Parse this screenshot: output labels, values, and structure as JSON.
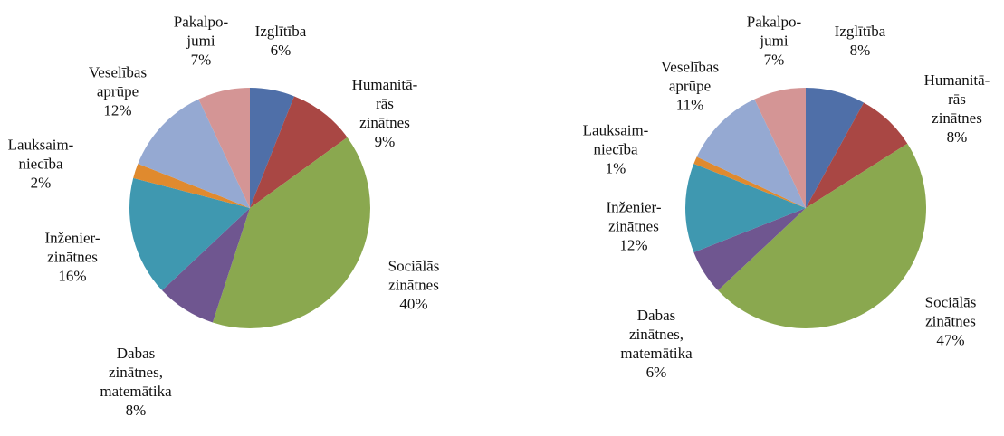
{
  "chart_data": [
    {
      "type": "pie",
      "categories": [
        "Izglītība",
        "Humanitā-\nrās\nzinātnes",
        "Sociālās\nzinātnes",
        "Dabas\nzinātnes,\nmatemātika",
        "Inženier-\nzinātnes",
        "Lauksaim-\nniecība",
        "Veselības\naprūpe",
        "Pakalpo-\njumi"
      ],
      "values": [
        6,
        9,
        40,
        8,
        16,
        2,
        12,
        7
      ],
      "value_labels": [
        "6%",
        "9%",
        "40%",
        "8%",
        "16%",
        "2%",
        "12%",
        "7%"
      ],
      "colors": [
        "#4f6fa8",
        "#a94744",
        "#8aa84f",
        "#6f5690",
        "#3f98b0",
        "#e08a2e",
        "#95a9d2",
        "#d49595"
      ]
    },
    {
      "type": "pie",
      "categories": [
        "Izglītība",
        "Humanitā-\nrās\nzinātnes",
        "Sociālās\nzinātnes",
        "Dabas\nzinātnes,\nmatemātika",
        "Inženier-\nzinātnes",
        "Lauksaim-\nniecība",
        "Veselības\naprūpe",
        "Pakalpo-\njumi"
      ],
      "values": [
        8,
        8,
        47,
        6,
        12,
        1,
        11,
        7
      ],
      "value_labels": [
        "8%",
        "8%",
        "47%",
        "6%",
        "12%",
        "1%",
        "11%",
        "7%"
      ],
      "colors": [
        "#4f6fa8",
        "#a94744",
        "#8aa84f",
        "#6f5690",
        "#3f98b0",
        "#e08a2e",
        "#95a9d2",
        "#d49595"
      ]
    }
  ]
}
